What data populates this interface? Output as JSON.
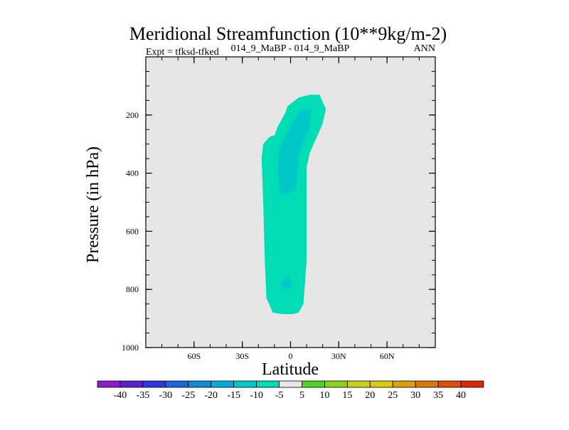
{
  "chart_data": {
    "type": "heatmap",
    "title": "Meridional Streamfunction (10**9kg/m-2)",
    "subtitle_left": "Expt = tfksd-tfked",
    "subtitle_center": "014_9_MaBP - 014_9_MaBP",
    "subtitle_right": "ANN",
    "xlabel": "Latitude",
    "ylabel": "Pressure (in hPa)",
    "xlim": [
      -90,
      90
    ],
    "ylim": [
      1000,
      0
    ],
    "x_ticks": [
      {
        "value": -60,
        "label": "60S"
      },
      {
        "value": -30,
        "label": "30S"
      },
      {
        "value": 0,
        "label": "0"
      },
      {
        "value": 30,
        "label": "30N"
      },
      {
        "value": 60,
        "label": "60N"
      }
    ],
    "y_ticks": [
      {
        "value": 200,
        "label": "200"
      },
      {
        "value": 400,
        "label": "400"
      },
      {
        "value": 600,
        "label": "600"
      },
      {
        "value": 800,
        "label": "800"
      },
      {
        "value": 1000,
        "label": "1000"
      }
    ],
    "y_minor_step": 50,
    "x_minor_step": 10,
    "background_color": "#e6e6e6",
    "colorbar": {
      "labels": [
        "-40",
        "-35",
        "-30",
        "-25",
        "-20",
        "-15",
        "-10",
        "-5",
        "5",
        "10",
        "15",
        "20",
        "25",
        "30",
        "35",
        "40"
      ],
      "colors": [
        "#8c1ec8",
        "#5a1ed2",
        "#2d37dc",
        "#1e64d7",
        "#0f8cd2",
        "#00aadc",
        "#00c8c8",
        "#00dcb4",
        "#e6e6e6",
        "#50d228",
        "#8cd21e",
        "#c8d21e",
        "#dcc814",
        "#dca00a",
        "#dc780a",
        "#dc500a",
        "#dc2800"
      ]
    },
    "contours": [
      {
        "level": "-10 to -5",
        "color": "#00dcb4",
        "polygon": [
          [
            -11,
            880
          ],
          [
            -5,
            885
          ],
          [
            1,
            885
          ],
          [
            5,
            880
          ],
          [
            8,
            850
          ],
          [
            10,
            700
          ],
          [
            10,
            500
          ],
          [
            10,
            380
          ],
          [
            12,
            330
          ],
          [
            20,
            230
          ],
          [
            22,
            180
          ],
          [
            18,
            130
          ],
          [
            12,
            130
          ],
          [
            5,
            140
          ],
          [
            -2,
            170
          ],
          [
            -3,
            190
          ],
          [
            -8,
            240
          ],
          [
            -10,
            270
          ],
          [
            -13,
            275
          ],
          [
            -17,
            300
          ],
          [
            -18,
            350
          ],
          [
            -17,
            500
          ],
          [
            -16,
            700
          ],
          [
            -15,
            830
          ]
        ]
      },
      {
        "level": "-15 to -10",
        "color": "#00c8c8",
        "polygon": [
          [
            -6,
            480
          ],
          [
            -2,
            470
          ],
          [
            3,
            460
          ],
          [
            4,
            420
          ],
          [
            5,
            340
          ],
          [
            12,
            240
          ],
          [
            13,
            180
          ],
          [
            7,
            180
          ],
          [
            3,
            210
          ],
          [
            -2,
            260
          ],
          [
            -7,
            320
          ],
          [
            -8,
            380
          ],
          [
            -7,
            440
          ]
        ]
      },
      {
        "level": "-15 to -10",
        "color": "#00c8c8",
        "polygon": [
          [
            -5,
            795
          ],
          [
            -3,
            800
          ],
          [
            0,
            795
          ],
          [
            1,
            780
          ],
          [
            -1,
            760
          ],
          [
            -4,
            765
          ],
          [
            -6,
            780
          ]
        ]
      }
    ]
  }
}
